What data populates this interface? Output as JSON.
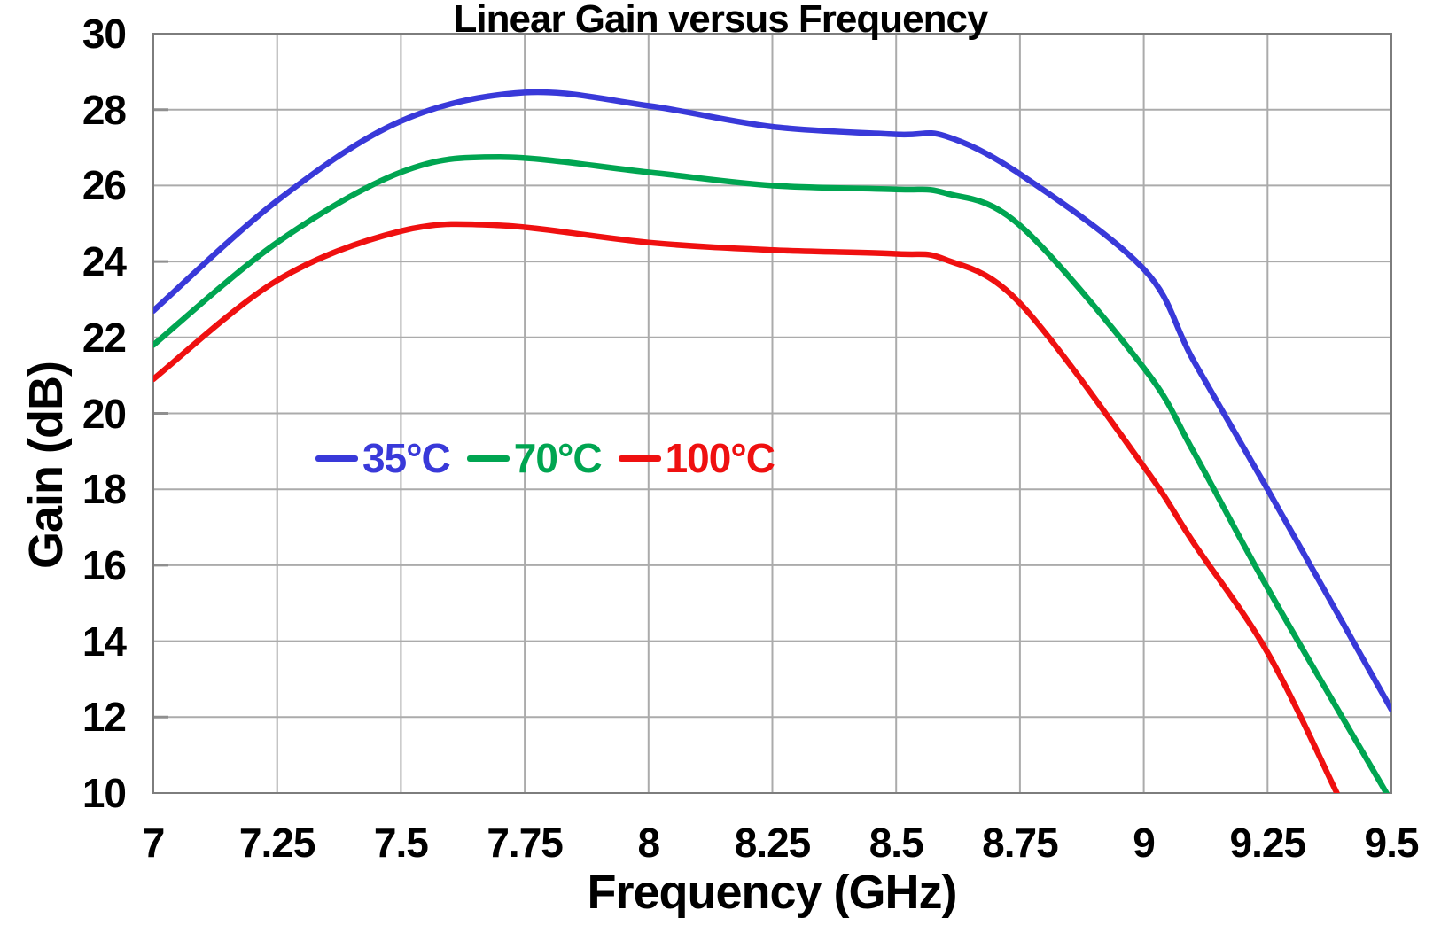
{
  "chart_data": {
    "type": "line",
    "title": "Linear Gain versus Frequency",
    "xlabel": "Frequency (GHz)",
    "ylabel": "Gain (dB)",
    "xlim": [
      7,
      9.5
    ],
    "ylim": [
      10,
      30
    ],
    "grid": true,
    "legend_position": "inside-middle-left",
    "x_ticks": {
      "values": [
        7,
        7.25,
        7.5,
        7.75,
        8,
        8.25,
        8.5,
        8.75,
        9,
        9.25,
        9.5
      ],
      "labels": [
        "7",
        "7.25",
        "7.5",
        "7.75",
        "8",
        "8.25",
        "8.5",
        "8.75",
        "9",
        "9.25",
        "9.5"
      ]
    },
    "y_ticks": {
      "values": [
        10,
        12,
        14,
        16,
        18,
        20,
        22,
        24,
        26,
        28,
        30
      ],
      "labels": [
        "10",
        "12",
        "14",
        "16",
        "18",
        "20",
        "22",
        "24",
        "26",
        "28",
        "30"
      ]
    },
    "series": [
      {
        "name": "35°C",
        "color": "#3939d9",
        "x": [
          7,
          7.25,
          7.5,
          7.75,
          8,
          8.25,
          8.5,
          8.6,
          8.75,
          9,
          9.1,
          9.25,
          9.5
        ],
        "y": [
          22.7,
          25.6,
          27.7,
          28.45,
          28.1,
          27.55,
          27.35,
          27.3,
          26.3,
          23.8,
          21.4,
          18.0,
          12.2
        ]
      },
      {
        "name": "70°C",
        "color": "#00a551",
        "x": [
          7,
          7.25,
          7.5,
          7.7,
          8,
          8.25,
          8.5,
          8.6,
          8.75,
          9,
          9.1,
          9.25,
          9.49
        ],
        "y": [
          21.8,
          24.5,
          26.35,
          26.75,
          26.35,
          26.0,
          25.9,
          25.8,
          24.95,
          21.2,
          19.0,
          15.4,
          10.0
        ]
      },
      {
        "name": "100°C",
        "color": "#ef1010",
        "x": [
          7,
          7.25,
          7.5,
          7.7,
          8,
          8.25,
          8.5,
          8.6,
          8.75,
          9,
          9.1,
          9.25,
          9.39
        ],
        "y": [
          20.9,
          23.5,
          24.8,
          24.95,
          24.5,
          24.3,
          24.2,
          24.05,
          22.9,
          18.6,
          16.6,
          13.7,
          10.0
        ]
      }
    ]
  },
  "colors": {
    "grid": "#ababab",
    "axis_border": "#7d7d7d",
    "tick_stub": "#8f8f8f",
    "background": "#ffffff",
    "text": "#000000"
  }
}
